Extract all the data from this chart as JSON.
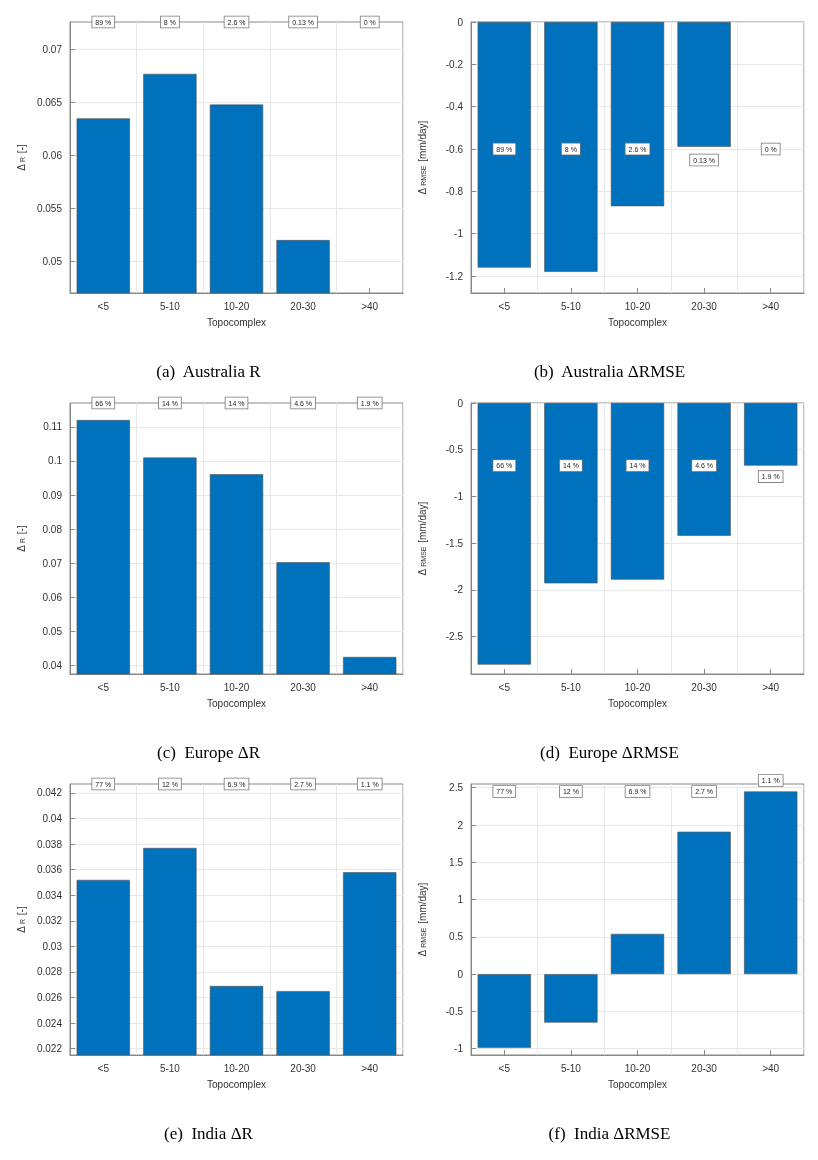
{
  "chart_data": [
    {
      "type": "bar",
      "title": "(a)  Australia R",
      "xlabel": "Topocomplex",
      "ylabel": "Δ$_{R}$ [-]",
      "categories": [
        "<5",
        "5-10",
        "10-20",
        "20-30",
        ">40"
      ],
      "series": [
        {
          "color": "#0072bd",
          "values": [
            0.0635,
            0.0677,
            0.0648,
            0.052,
            null
          ]
        }
      ],
      "ylim": [
        0.047,
        0.0726
      ],
      "yticks": [
        0.05,
        0.055,
        0.06,
        0.065,
        0.07
      ],
      "grid": true,
      "annotations": [
        {
          "text": "89 %",
          "x": "<5",
          "y": 0.0726
        },
        {
          "text": "8 %",
          "x": "5-10",
          "y": 0.0726
        },
        {
          "text": "2.6 %",
          "x": "10-20",
          "y": 0.0726
        },
        {
          "text": "0.13 %",
          "x": "20-30",
          "y": 0.0726
        },
        {
          "text": "0 %",
          "x": ">40",
          "y": 0.0726
        }
      ]
    },
    {
      "type": "bar",
      "title": "(b)  Australia ΔRMSE",
      "xlabel": "Topocomplex",
      "ylabel": "Δ$_{RMSE}$ [mm/day]",
      "categories": [
        "<5",
        "5-10",
        "10-20",
        "20-30",
        ">40"
      ],
      "series": [
        {
          "color": "#0072bd",
          "values": [
            -1.16,
            -1.18,
            -0.87,
            -0.59,
            null
          ]
        }
      ],
      "ylim": [
        -1.28,
        0
      ],
      "yticks": [
        -1.2,
        -1,
        -0.8,
        -0.6,
        -0.4,
        -0.2,
        0
      ],
      "grid": true,
      "annotations": [
        {
          "text": "89 %",
          "x": "<5",
          "y": -0.6
        },
        {
          "text": "8 %",
          "x": "5-10",
          "y": -0.6
        },
        {
          "text": "2.6 %",
          "x": "10-20",
          "y": -0.6
        },
        {
          "text": "0.13 %",
          "x": "20-30",
          "y": -0.6
        },
        {
          "text": "0 %",
          "x": ">40",
          "y": -0.6
        }
      ]
    },
    {
      "type": "bar",
      "title": "(c)  Europe ΔR",
      "xlabel": "Topocomplex",
      "ylabel": "Δ$_{R}$ [-]",
      "categories": [
        "<5",
        "5-10",
        "10-20",
        "20-30",
        ">40"
      ],
      "series": [
        {
          "color": "#0072bd",
          "values": [
            0.112,
            0.101,
            0.0961,
            0.0703,
            0.0425
          ]
        }
      ],
      "ylim": [
        0.0375,
        0.117
      ],
      "yticks": [
        0.04,
        0.05,
        0.06,
        0.07,
        0.08,
        0.09,
        0.1,
        0.11
      ],
      "grid": true,
      "annotations": [
        {
          "text": "66 %",
          "x": "<5",
          "y": 0.117
        },
        {
          "text": "14 %",
          "x": "5-10",
          "y": 0.117
        },
        {
          "text": "14 %",
          "x": "10-20",
          "y": 0.117
        },
        {
          "text": "4.6 %",
          "x": "20-30",
          "y": 0.117
        },
        {
          "text": "1.9 %",
          "x": ">40",
          "y": 0.117
        }
      ]
    },
    {
      "type": "bar",
      "title": "(d)  Europe ΔRMSE",
      "xlabel": "Topocomplex",
      "ylabel": "Δ$_{RMSE}$ [mm/day]",
      "categories": [
        "<5",
        "5-10",
        "10-20",
        "20-30",
        ">40"
      ],
      "series": [
        {
          "color": "#0072bd",
          "values": [
            -2.8,
            -1.93,
            -1.89,
            -1.42,
            -0.67
          ]
        }
      ],
      "ylim": [
        -2.9,
        0
      ],
      "yticks": [
        -2.5,
        -2,
        -1.5,
        -1,
        -0.5,
        0
      ],
      "grid": true,
      "annotations": [
        {
          "text": "66 %",
          "x": "<5",
          "y": -0.67
        },
        {
          "text": "14 %",
          "x": "5-10",
          "y": -0.67
        },
        {
          "text": "14 %",
          "x": "10-20",
          "y": -0.67
        },
        {
          "text": "4.6 %",
          "x": "20-30",
          "y": -0.67
        },
        {
          "text": "1.9 %",
          "x": ">40",
          "y": -0.67
        }
      ]
    },
    {
      "type": "bar",
      "title": "(e)  India ΔR",
      "xlabel": "Topocomplex",
      "ylabel": "Δ$_{R}$ [-]",
      "categories": [
        "<5",
        "5-10",
        "10-20",
        "20-30",
        ">40"
      ],
      "series": [
        {
          "color": "#0072bd",
          "values": [
            0.0352,
            0.0377,
            0.0269,
            0.0265,
            0.0358
          ]
        }
      ],
      "ylim": [
        0.0215,
        0.0427
      ],
      "yticks": [
        0.022,
        0.024,
        0.026,
        0.028,
        0.03,
        0.032,
        0.034,
        0.036,
        0.038,
        0.04,
        0.042
      ],
      "grid": true,
      "annotations": [
        {
          "text": "77 %",
          "x": "<5",
          "y": 0.0427
        },
        {
          "text": "12 %",
          "x": "5-10",
          "y": 0.0427
        },
        {
          "text": "6.9 %",
          "x": "10-20",
          "y": 0.0427
        },
        {
          "text": "2.7 %",
          "x": "20-30",
          "y": 0.0427
        },
        {
          "text": "1.1 %",
          "x": ">40",
          "y": 0.0427
        }
      ]
    },
    {
      "type": "bar",
      "title": "(f)  India ΔRMSE",
      "xlabel": "Topocomplex",
      "ylabel": "Δ$_{RMSE}$ [mm/day]",
      "categories": [
        "<5",
        "5-10",
        "10-20",
        "20-30",
        ">40"
      ],
      "series": [
        {
          "color": "#0072bd",
          "values": [
            -0.99,
            -0.65,
            0.54,
            1.91,
            2.45
          ]
        }
      ],
      "ylim": [
        -1.085,
        2.55
      ],
      "yticks": [
        -1,
        -0.5,
        0,
        0.5,
        1,
        1.5,
        2,
        2.5
      ],
      "grid": true,
      "annotations": [
        {
          "text": "77 %",
          "x": "<5",
          "y": 2.45
        },
        {
          "text": "12 %",
          "x": "5-10",
          "y": 2.45
        },
        {
          "text": "6.9 %",
          "x": "10-20",
          "y": 2.45
        },
        {
          "text": "2.7 %",
          "x": "20-30",
          "y": 2.45
        },
        {
          "text": "1.1 %",
          "x": ">40",
          "y": 2.45
        }
      ]
    }
  ]
}
